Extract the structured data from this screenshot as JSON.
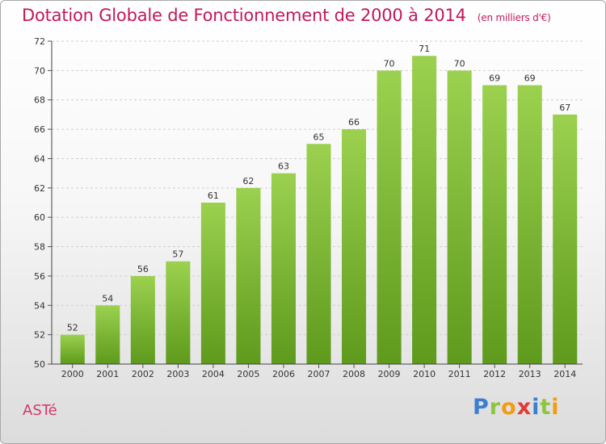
{
  "title": "Dotation Globale de Fonctionnement de 2000 à 2014",
  "unit": "(en milliers d'€)",
  "commune": "ASTé",
  "logo": {
    "letters": [
      {
        "ch": "P",
        "color": "#3b7fd0"
      },
      {
        "ch": "r",
        "color": "#8cc63f"
      },
      {
        "ch": "o",
        "color": "#f39c12"
      },
      {
        "ch": "x",
        "color": "#e53935"
      },
      {
        "ch": "i",
        "color": "#3b7fd0"
      },
      {
        "ch": "t",
        "color": "#8cc63f"
      },
      {
        "ch": "i",
        "color": "#f39c12"
      }
    ]
  },
  "chart_data": {
    "type": "bar",
    "title": "Dotation Globale de Fonctionnement de 2000 à 2014",
    "subtitle": "(en milliers d'€)",
    "categories": [
      "2000",
      "2001",
      "2002",
      "2003",
      "2004",
      "2005",
      "2006",
      "2007",
      "2008",
      "2009",
      "2010",
      "2011",
      "2012",
      "2013",
      "2014"
    ],
    "values": [
      52,
      54,
      56,
      57,
      61,
      62,
      63,
      65,
      66,
      70,
      71,
      70,
      69,
      69,
      67
    ],
    "ylim": [
      50,
      72
    ],
    "yticks": [
      50,
      52,
      54,
      56,
      58,
      60,
      62,
      64,
      66,
      68,
      70,
      72
    ],
    "grid": true,
    "bar_color": "#7cb82f",
    "bar_color_light": "#9bd14f",
    "bar_color_dark": "#5e9a1c"
  }
}
